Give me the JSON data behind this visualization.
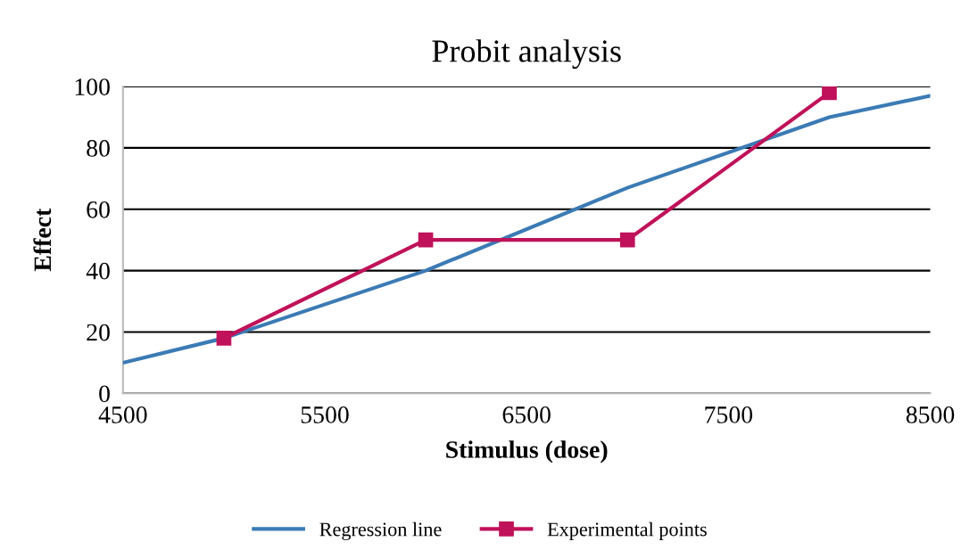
{
  "chart_data": {
    "type": "line",
    "title": "Probit analysis",
    "xlabel": "Stimulus (dose)",
    "ylabel": "Effect",
    "xlim": [
      4500,
      8500
    ],
    "xticks": [
      4500,
      5500,
      6500,
      7500,
      8500
    ],
    "ylim": [
      0,
      100
    ],
    "yticks": [
      0,
      20,
      40,
      60,
      80,
      100
    ],
    "grid": "y",
    "legend": "bottom",
    "series": [
      {
        "name": "Regression line",
        "color": "#3b7bb5",
        "x": [
          4500,
          5000,
          6000,
          7000,
          8000,
          8500
        ],
        "values": [
          10,
          18,
          40,
          67,
          90,
          97
        ],
        "marker": "none"
      },
      {
        "name": "Experimental points",
        "color": "#c0125a",
        "x": [
          5000,
          6000,
          7000,
          8000
        ],
        "values": [
          18,
          50,
          50,
          98
        ],
        "marker": "square"
      }
    ]
  }
}
